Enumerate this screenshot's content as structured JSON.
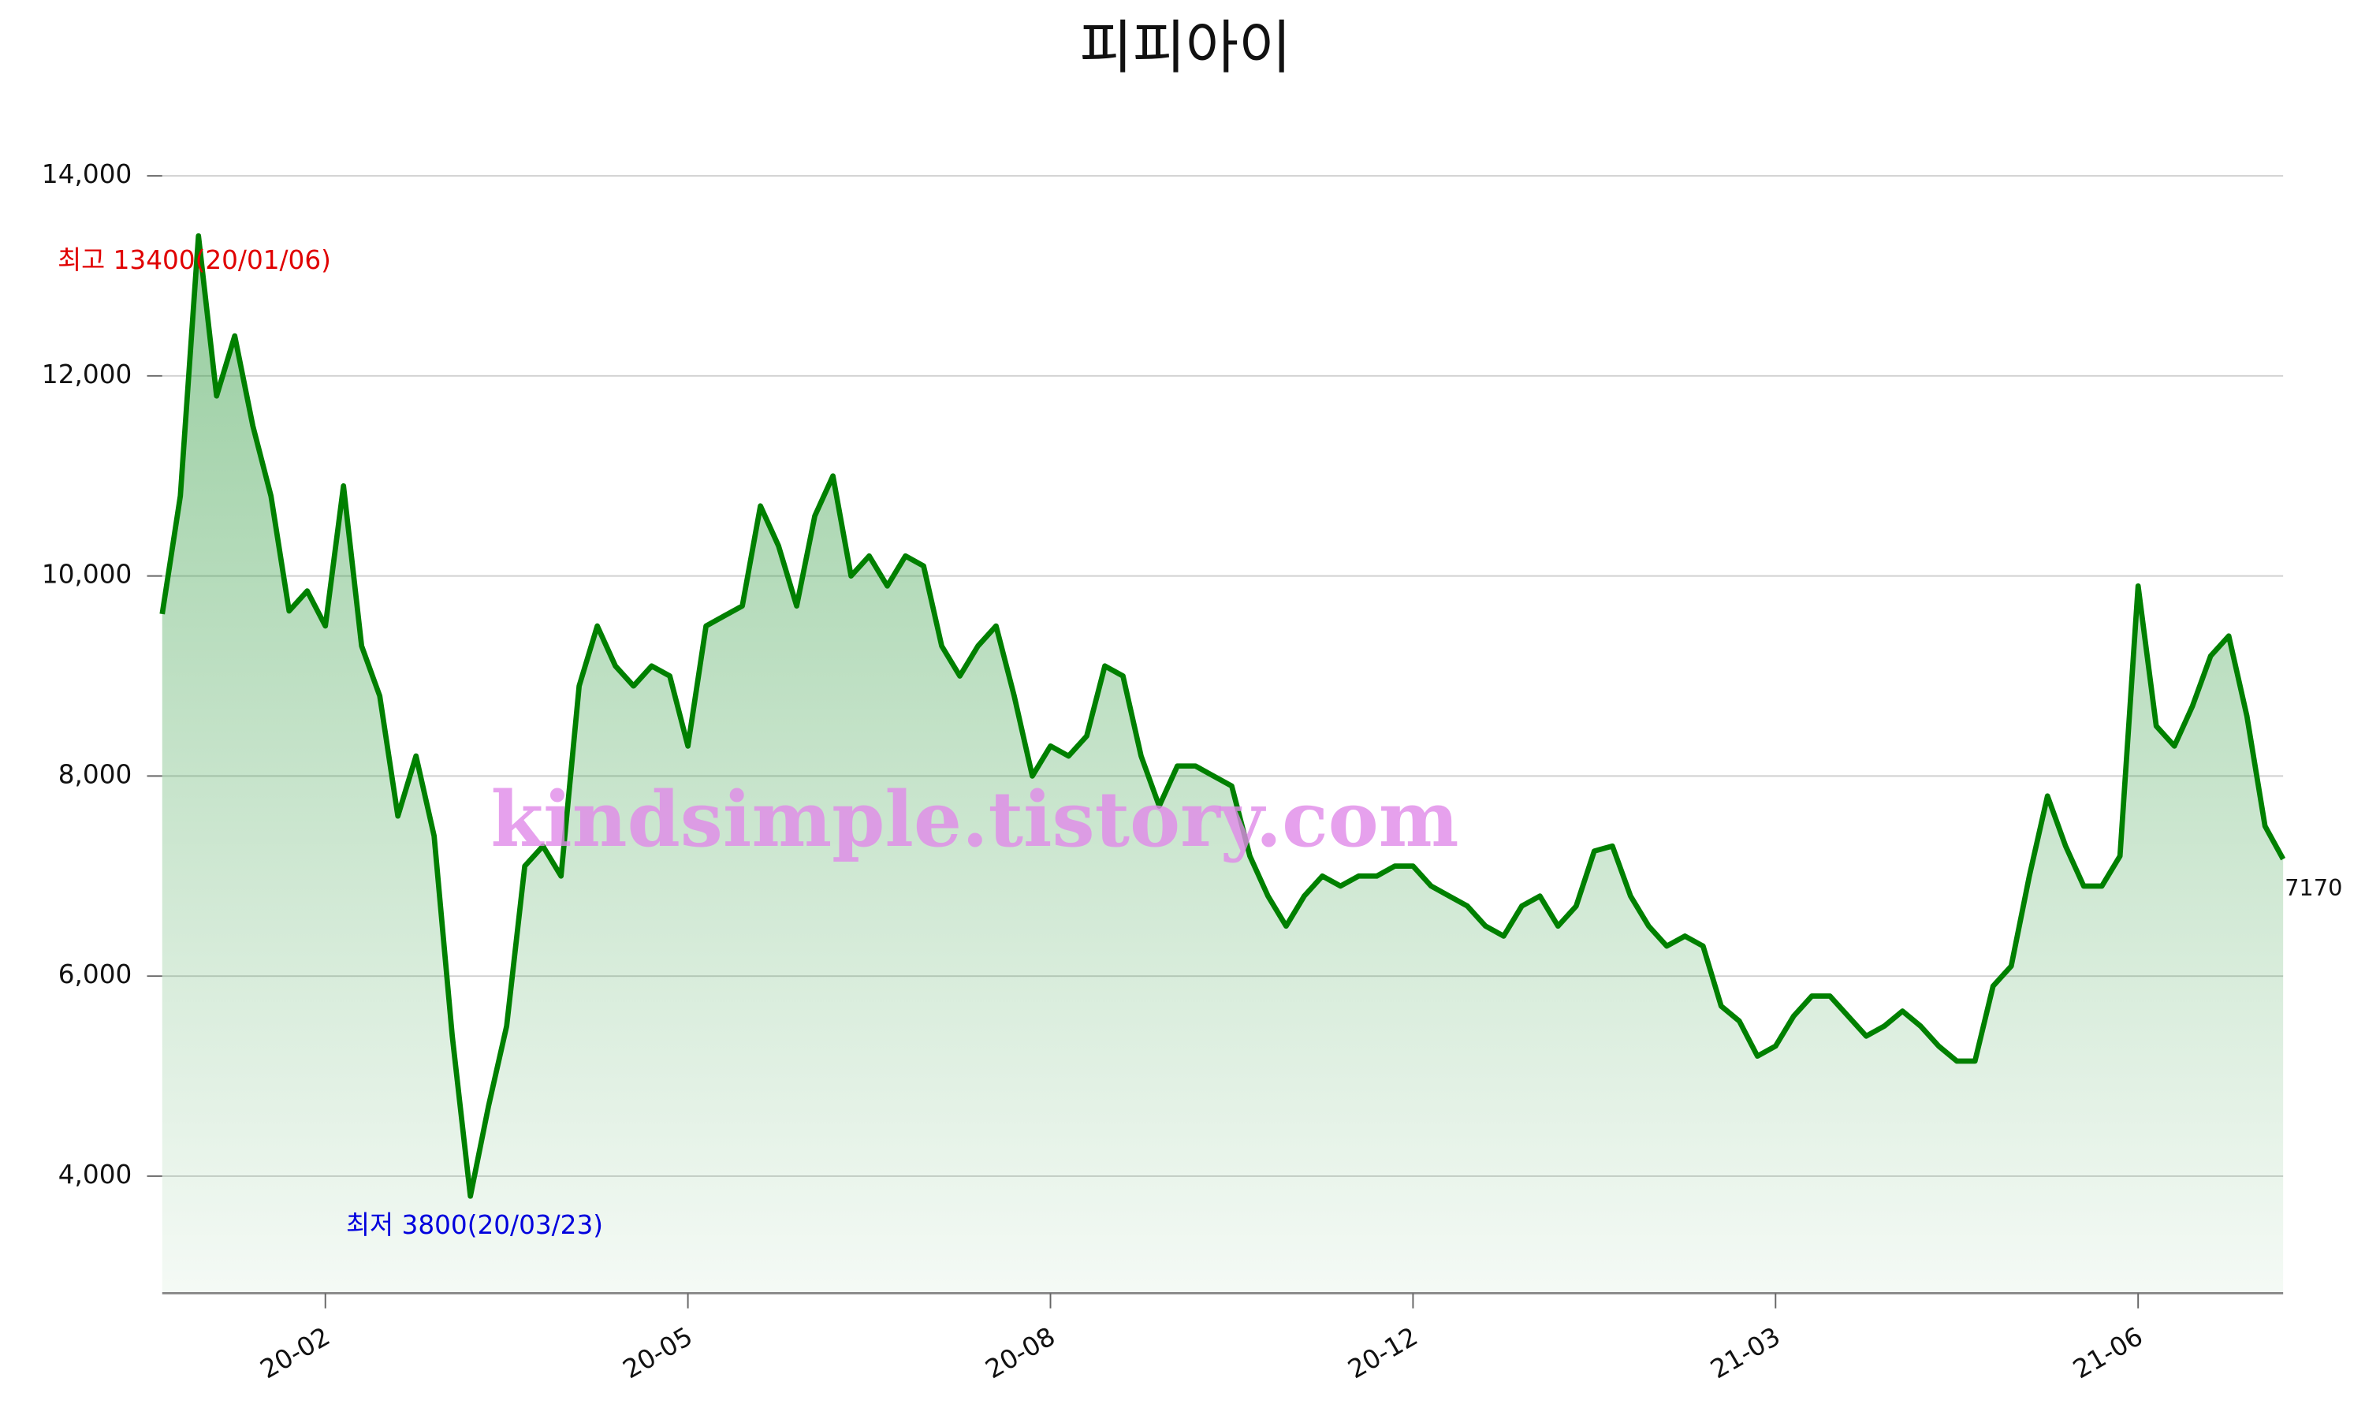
{
  "chart_data": {
    "type": "line",
    "title": "피피아이",
    "watermark": "kindsimple.tistory.com",
    "categories": [
      null,
      null,
      null,
      null,
      null,
      null,
      null,
      null,
      null,
      "20-02",
      null,
      null,
      null,
      null,
      null,
      null,
      null,
      null,
      null,
      null,
      null,
      null,
      null,
      null,
      null,
      null,
      null,
      null,
      null,
      "20-05",
      null,
      null,
      null,
      null,
      null,
      null,
      null,
      null,
      null,
      null,
      null,
      null,
      null,
      null,
      null,
      null,
      null,
      null,
      null,
      "20-08",
      null,
      null,
      null,
      null,
      null,
      null,
      null,
      null,
      null,
      null,
      null,
      null,
      null,
      null,
      null,
      null,
      null,
      null,
      null,
      "20-12",
      null,
      null,
      null,
      null,
      null,
      null,
      null,
      null,
      null,
      null,
      null,
      null,
      null,
      null,
      null,
      null,
      null,
      null,
      null,
      "21-03",
      null,
      null,
      null,
      null,
      null,
      null,
      null,
      null,
      null,
      null,
      null,
      null,
      null,
      null,
      null,
      null,
      null,
      null,
      null,
      "21-06",
      null,
      null,
      null,
      null,
      null,
      null,
      null,
      null
    ],
    "series": [
      {
        "color": "#008000",
        "values": [
          9620,
          10800,
          13400,
          11800,
          12400,
          11500,
          10800,
          9650,
          9850,
          9500,
          10900,
          9300,
          8800,
          7600,
          8200,
          7400,
          5400,
          3800,
          4700,
          5500,
          7100,
          7300,
          7000,
          8900,
          9500,
          9100,
          8900,
          9100,
          9000,
          8300,
          9500,
          9600,
          9700,
          10700,
          10300,
          9700,
          10600,
          11000,
          10000,
          10200,
          9900,
          10200,
          10100,
          9300,
          9000,
          9300,
          9500,
          8800,
          8000,
          8300,
          8200,
          8400,
          9100,
          9000,
          8200,
          7700,
          8100,
          8100,
          8000,
          7900,
          7200,
          6800,
          6500,
          6800,
          7000,
          6900,
          7000,
          7000,
          7100,
          7100,
          6900,
          6800,
          6700,
          6500,
          6400,
          6700,
          6800,
          6500,
          6700,
          7250,
          7300,
          6800,
          6500,
          6300,
          6400,
          6300,
          5700,
          5550,
          5200,
          5300,
          5600,
          5800,
          5800,
          5600,
          5400,
          5500,
          5650,
          5500,
          5300,
          5150,
          5150,
          5900,
          6100,
          7000,
          7800,
          7300,
          6900,
          6900,
          7200,
          9900,
          8500,
          8300,
          8700,
          9200,
          9400,
          8600,
          7500,
          7170
        ]
      }
    ],
    "ylim": [
      2830,
      14000
    ],
    "yticks": [
      {
        "value": 4000,
        "label": "4,000"
      },
      {
        "value": 6000,
        "label": "6,000"
      },
      {
        "value": 8000,
        "label": "8,000"
      },
      {
        "value": 10000,
        "label": "10,000"
      },
      {
        "value": 12000,
        "label": "12,000"
      },
      {
        "value": 14000,
        "label": "14,000"
      }
    ],
    "grid": true,
    "annotations": [
      {
        "text": "최고 13400(20/01/06)",
        "color": "#e00000"
      },
      {
        "text": "최저 3800(20/03/23)",
        "color": "#0000dd"
      }
    ]
  }
}
